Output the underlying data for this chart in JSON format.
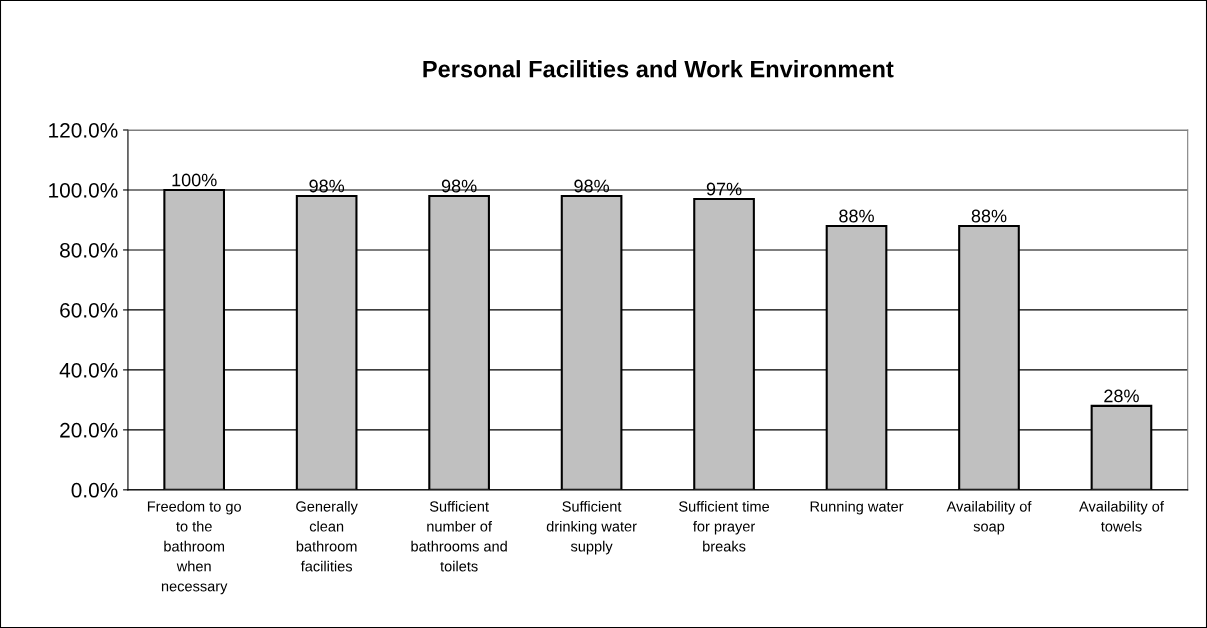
{
  "chart_data": {
    "type": "bar",
    "title": "Personal Facilities and Work Environment",
    "categories": [
      "Freedom to go\nto the\nbathroom\nwhen\nnecessary",
      "Generally\nclean\nbathroom\nfacilities",
      "Sufficient\nnumber of\nbathrooms and\ntoilets",
      "Sufficient\ndrinking water\nsupply",
      "Sufficient time\nfor prayer\nbreaks",
      "Running water",
      "Availability of\nsoap",
      "Availability of\ntowels"
    ],
    "values": [
      100,
      98,
      98,
      98,
      97,
      88,
      88,
      28
    ],
    "value_labels": [
      "100%",
      "98%",
      "98%",
      "98%",
      "97%",
      "88%",
      "88%",
      "28%"
    ],
    "color": "#c0c0c0",
    "ylim": [
      0,
      120
    ],
    "yticks": [
      {
        "value": 0,
        "label": "0.0%"
      },
      {
        "value": 20,
        "label": "20.0%"
      },
      {
        "value": 40,
        "label": "40.0%"
      },
      {
        "value": 60,
        "label": "60.0%"
      },
      {
        "value": 80,
        "label": "80.0%"
      },
      {
        "value": 100,
        "label": "100.0%"
      },
      {
        "value": 120,
        "label": "120.0%"
      }
    ],
    "grid": "y"
  }
}
